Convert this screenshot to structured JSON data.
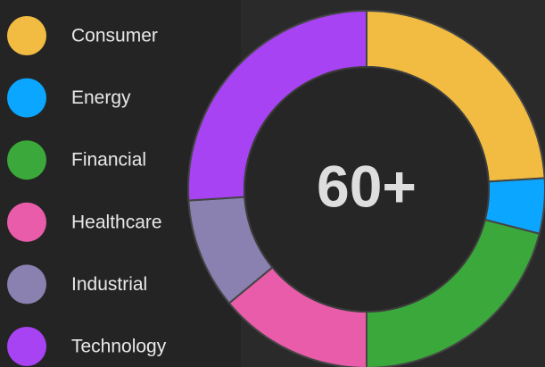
{
  "chart_data": {
    "type": "donut",
    "categories": [
      "Consumer",
      "Energy",
      "Financial",
      "Healthcare",
      "Industrial",
      "Technology"
    ],
    "values": [
      24,
      5,
      21,
      14,
      10,
      26
    ],
    "colors": [
      "#f1bc41",
      "#0aa6ff",
      "#3aa83a",
      "#e95ca9",
      "#8a81b1",
      "#a743f3"
    ],
    "center_label": "60+"
  }
}
